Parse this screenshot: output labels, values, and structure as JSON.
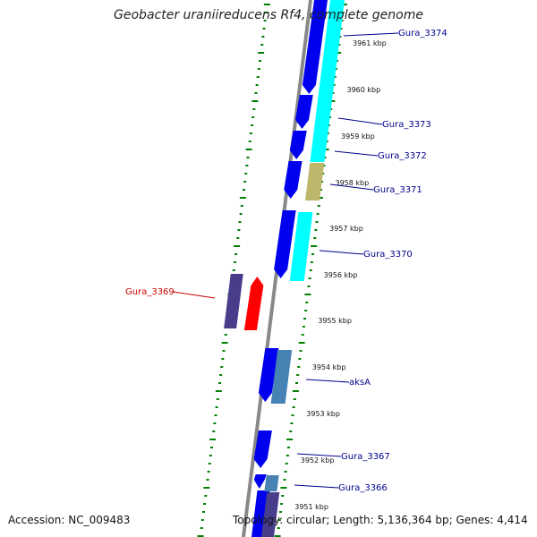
{
  "header": {
    "title": "Geobacter uraniireducens Rf4, complete genome"
  },
  "footer": {
    "accession": "Accession: NC_009483",
    "topology": "Topology: circular; Length: 5,136,364 bp; Genes: 4,414"
  },
  "colors": {
    "forward_gene": "#0000ee",
    "cds_cyan": "#00ffff",
    "cds_khaki": "#bdb76b",
    "cds_steelblue": "#4682b4",
    "cds_slate": "#483d8b",
    "selected_gene": "#ff0000",
    "label_blue": "#00008b",
    "label_red": "#cc0000",
    "backbone": "#888888",
    "ticks": "#008000"
  },
  "scale": {
    "kbp_labels": [
      "3961 kbp",
      "3960 kbp",
      "3959 kbp",
      "3958 kbp",
      "3957 kbp",
      "3956 kbp",
      "3955 kbp",
      "3954 kbp",
      "3953 kbp",
      "3952 kbp",
      "3951 kbp"
    ]
  },
  "genes": [
    {
      "name": "Gura_3374",
      "selected": false
    },
    {
      "name": "Gura_3373",
      "selected": false
    },
    {
      "name": "Gura_3372",
      "selected": false
    },
    {
      "name": "Gura_3371",
      "selected": false
    },
    {
      "name": "Gura_3370",
      "selected": false
    },
    {
      "name": "Gura_3369",
      "selected": true
    },
    {
      "name": "aksA",
      "selected": false
    },
    {
      "name": "Gura_3367",
      "selected": false
    },
    {
      "name": "Gura_3366",
      "selected": false
    }
  ]
}
